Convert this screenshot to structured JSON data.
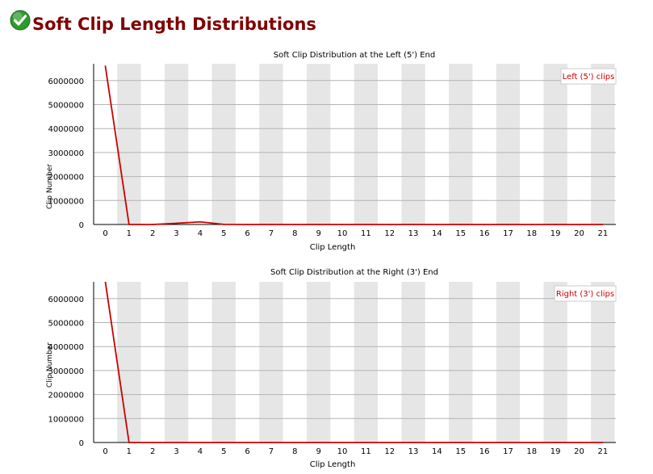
{
  "page": {
    "title": "Soft Clip Length Distributions",
    "status_icon": "check-icon",
    "status_color": "#2e9a2e"
  },
  "chart_data": [
    {
      "type": "line",
      "title": "Soft Clip Distribution at the Left (5') End",
      "xlabel": "Clip Length",
      "ylabel": "Clip Number",
      "x": [
        0,
        1,
        2,
        3,
        4,
        5,
        6,
        7,
        8,
        9,
        10,
        11,
        12,
        13,
        14,
        15,
        16,
        17,
        18,
        19,
        20,
        21
      ],
      "xlim": [
        0,
        21
      ],
      "ylim": [
        0,
        6700000
      ],
      "yticks": [
        0,
        1000000,
        2000000,
        3000000,
        4000000,
        5000000,
        6000000
      ],
      "series": [
        {
          "name": "Left (5') clips",
          "color": "#cc0000",
          "values": [
            6600000,
            0,
            0,
            50000,
            110000,
            5000,
            0,
            0,
            0,
            0,
            0,
            0,
            0,
            0,
            0,
            0,
            0,
            0,
            0,
            0,
            0,
            0
          ]
        }
      ],
      "legend": "top-right",
      "grid": true,
      "banded_background": true
    },
    {
      "type": "line",
      "title": "Soft Clip Distribution at the Right (3') End",
      "xlabel": "Clip Length",
      "ylabel": "Clip Number",
      "x": [
        0,
        1,
        2,
        3,
        4,
        5,
        6,
        7,
        8,
        9,
        10,
        11,
        12,
        13,
        14,
        15,
        16,
        17,
        18,
        19,
        20,
        21
      ],
      "xlim": [
        0,
        21
      ],
      "ylim": [
        0,
        6700000
      ],
      "yticks": [
        0,
        1000000,
        2000000,
        3000000,
        4000000,
        5000000,
        6000000
      ],
      "series": [
        {
          "name": "Right (3') clips",
          "color": "#cc0000",
          "values": [
            6700000,
            0,
            0,
            0,
            0,
            0,
            0,
            0,
            0,
            0,
            0,
            0,
            0,
            0,
            0,
            0,
            0,
            0,
            0,
            0,
            0,
            0
          ]
        }
      ],
      "legend": "top-right",
      "grid": true,
      "banded_background": true
    }
  ]
}
